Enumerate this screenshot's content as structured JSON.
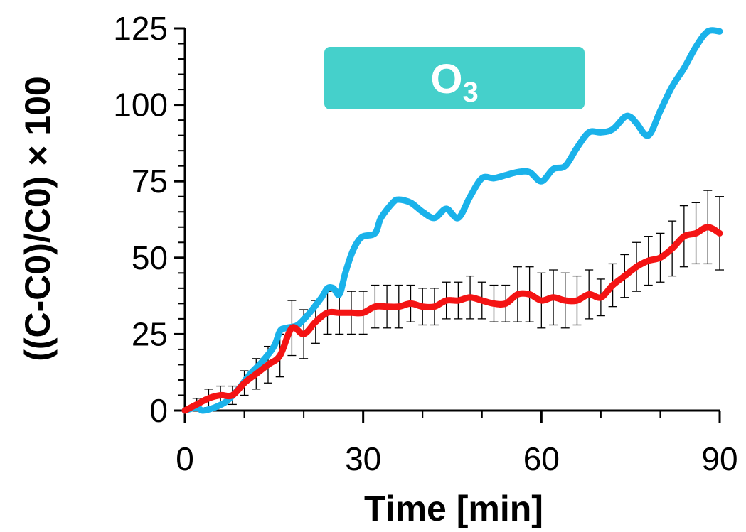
{
  "chart_data": {
    "type": "line",
    "title": "",
    "xlabel": "Time [min]",
    "ylabel": "((C-C0)/C0) × 100",
    "xlim": [
      0,
      90
    ],
    "ylim": [
      0,
      125
    ],
    "xticks": [
      0,
      30,
      60,
      90
    ],
    "yticks": [
      0,
      25,
      50,
      75,
      100,
      125
    ],
    "x_minor_step": 10,
    "y_minor_step": 5,
    "grid": false,
    "annotation": {
      "text": "O",
      "subscript": "3",
      "color": "#45d0cb"
    },
    "series": [
      {
        "color": "#1ab2ea",
        "x": [
          0,
          2,
          3,
          5,
          7,
          9,
          11,
          13,
          15,
          16,
          17,
          19,
          21,
          23,
          24,
          25,
          26,
          27,
          28,
          29,
          30,
          32,
          33,
          35,
          36,
          38,
          40,
          42,
          44,
          46,
          48,
          50,
          52,
          54,
          56,
          58,
          60,
          62,
          64,
          66,
          68,
          70,
          72,
          74,
          75,
          76,
          78,
          80,
          82,
          84,
          86,
          88,
          90
        ],
        "y": [
          0,
          1,
          0,
          1,
          3,
          7,
          12,
          16,
          21,
          26,
          27,
          28,
          32,
          37,
          40,
          40,
          38,
          45,
          51,
          55,
          57,
          58,
          63,
          68,
          69,
          68,
          65,
          63,
          66,
          63,
          70,
          76,
          76,
          77,
          78,
          78,
          75,
          79,
          80,
          86,
          91,
          91,
          92,
          96,
          96,
          94,
          90,
          98,
          106,
          112,
          119,
          124,
          124
        ]
      },
      {
        "color": "#f41414",
        "x": [
          0,
          2,
          4,
          6,
          8,
          10,
          12,
          14,
          16,
          18,
          20,
          22,
          24,
          26,
          28,
          30,
          32,
          34,
          36,
          38,
          40,
          42,
          44,
          46,
          48,
          50,
          52,
          54,
          56,
          58,
          60,
          62,
          64,
          66,
          68,
          70,
          72,
          74,
          76,
          78,
          80,
          82,
          84,
          86,
          88,
          90
        ],
        "y": [
          0,
          2,
          4,
          5,
          5,
          9,
          12,
          15,
          18,
          27,
          25,
          29,
          32,
          32,
          32,
          32,
          34,
          34,
          34,
          35,
          34,
          34,
          36,
          36,
          37,
          36,
          35,
          35,
          38,
          38,
          36,
          37,
          36,
          36,
          38,
          37,
          41,
          44,
          47,
          49,
          50,
          53,
          57,
          58,
          60,
          58
        ],
        "error": [
          0,
          2,
          3,
          3,
          3,
          4,
          5,
          6,
          7,
          9,
          8,
          7,
          7,
          7,
          7,
          7,
          7,
          7,
          7,
          6,
          6,
          6,
          6,
          6,
          7,
          6,
          6,
          6,
          9,
          9,
          9,
          9,
          9,
          8,
          8,
          6,
          7,
          7,
          8,
          8,
          8,
          9,
          10,
          10,
          12,
          12
        ]
      }
    ]
  }
}
